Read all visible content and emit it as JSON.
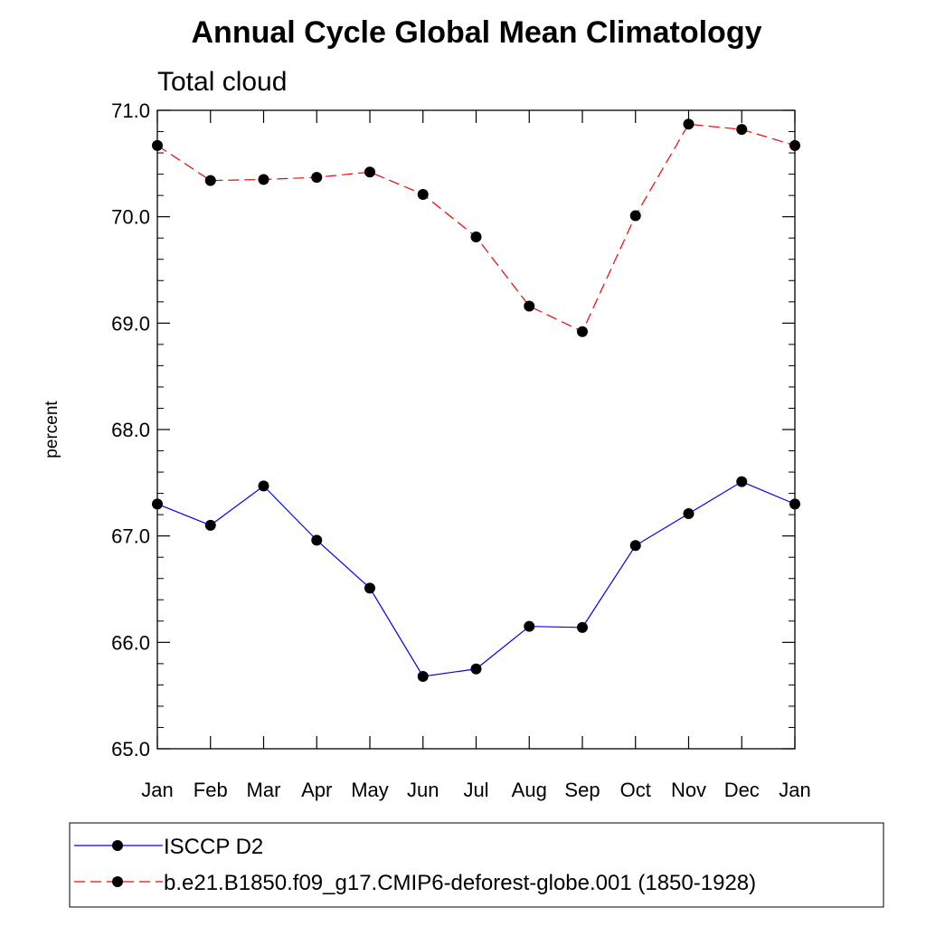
{
  "chart_data": {
    "type": "line",
    "title": "Annual Cycle Global Mean Climatology",
    "subtitle": "Total cloud",
    "xlabel": "",
    "ylabel": "percent",
    "categories": [
      "Jan",
      "Feb",
      "Mar",
      "Apr",
      "May",
      "Jun",
      "Jul",
      "Aug",
      "Sep",
      "Oct",
      "Nov",
      "Dec",
      "Jan"
    ],
    "ylim": [
      65.0,
      71.0
    ],
    "yticks": [
      "65.0",
      "66.0",
      "67.0",
      "68.0",
      "69.0",
      "70.0",
      "71.0"
    ],
    "grid": false,
    "legend_position": "bottom",
    "series": [
      {
        "name": "ISCCP D2",
        "color": "#0000ff",
        "line_style": "solid",
        "marker": "filled-circle",
        "values": [
          67.3,
          67.1,
          67.47,
          66.96,
          66.51,
          65.68,
          65.75,
          66.15,
          66.14,
          66.91,
          67.21,
          67.51,
          67.3
        ]
      },
      {
        "name": "b.e21.B1850.f09_g17.CMIP6-deforest-globe.001 (1850-1928)",
        "color": "#ff0000",
        "line_style": "dashed",
        "marker": "filled-circle",
        "values": [
          70.67,
          70.34,
          70.35,
          70.37,
          70.42,
          70.21,
          69.81,
          69.16,
          68.92,
          70.01,
          70.87,
          70.82,
          70.67
        ]
      }
    ]
  }
}
